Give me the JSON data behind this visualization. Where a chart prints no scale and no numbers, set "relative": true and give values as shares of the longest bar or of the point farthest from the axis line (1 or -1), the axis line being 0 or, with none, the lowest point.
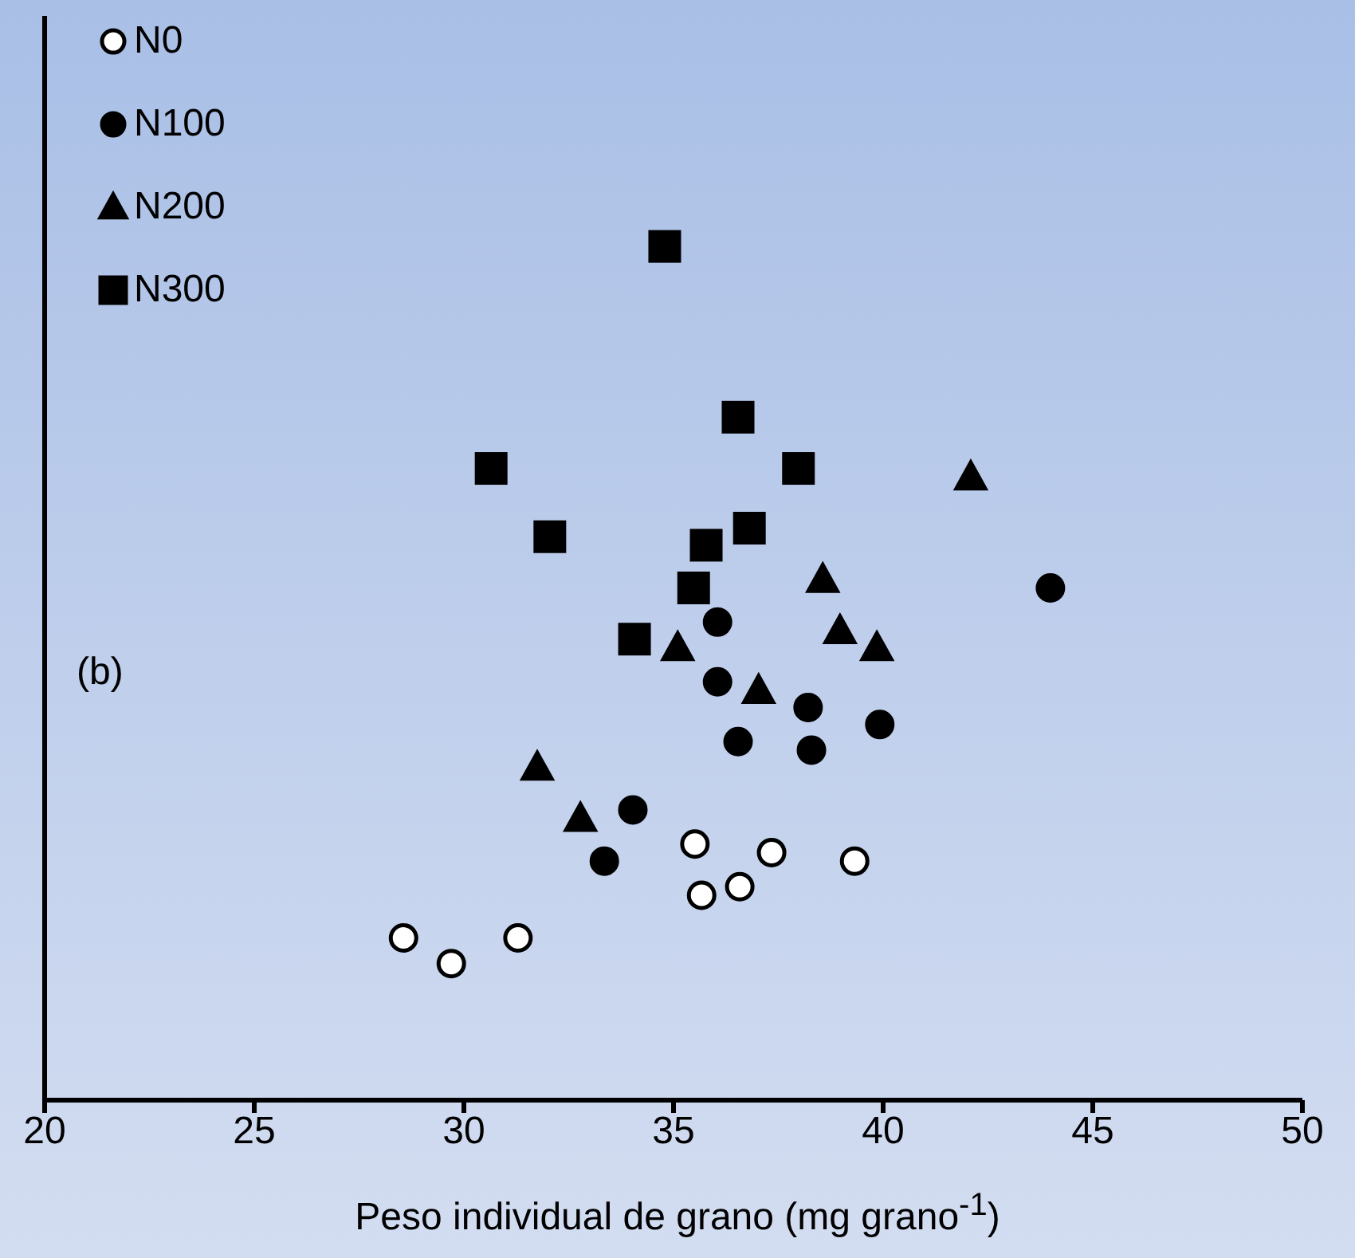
{
  "chart_data": {
    "type": "scatter",
    "relative": true,
    "xlabel": "Peso individual de grano (mg grano$^{-1}$)",
    "xlim": [
      20,
      50
    ],
    "xticks": [
      20,
      25,
      30,
      35,
      40,
      45,
      50
    ],
    "legend": "top left",
    "annotations": [
      "(b)"
    ],
    "series": [
      {
        "name": "N0",
        "color": "#ffffff",
        "marker": "circle",
        "x": [
          28.56,
          29.7,
          31.29,
          35.51,
          35.67,
          36.58,
          37.34,
          39.32
        ],
        "values": [
          0.19,
          0.16,
          0.19,
          0.3,
          0.24,
          0.25,
          0.29,
          0.28
        ]
      },
      {
        "name": "N100",
        "color": "#000000",
        "marker": "circle",
        "x": [
          33.35,
          34.03,
          36.05,
          36.05,
          36.54,
          38.21,
          38.29,
          39.92,
          43.99
        ],
        "values": [
          0.28,
          0.34,
          0.56,
          0.49,
          0.42,
          0.46,
          0.41,
          0.44,
          0.6
        ]
      },
      {
        "name": "N200",
        "color": "#000000",
        "marker": "triangle",
        "x": [
          31.75,
          32.78,
          35.1,
          37.03,
          38.56,
          38.97,
          39.85,
          42.09
        ],
        "values": [
          0.39,
          0.33,
          0.53,
          0.48,
          0.61,
          0.55,
          0.53,
          0.73
        ]
      },
      {
        "name": "N300",
        "color": "#000000",
        "marker": "square",
        "x": [
          34.79,
          36.54,
          30.65,
          37.98,
          32.05,
          36.81,
          35.78,
          35.48,
          34.07
        ],
        "values": [
          1,
          0.8,
          0.74,
          0.74,
          0.66,
          0.67,
          0.65,
          0.6,
          0.54
        ]
      }
    ]
  }
}
